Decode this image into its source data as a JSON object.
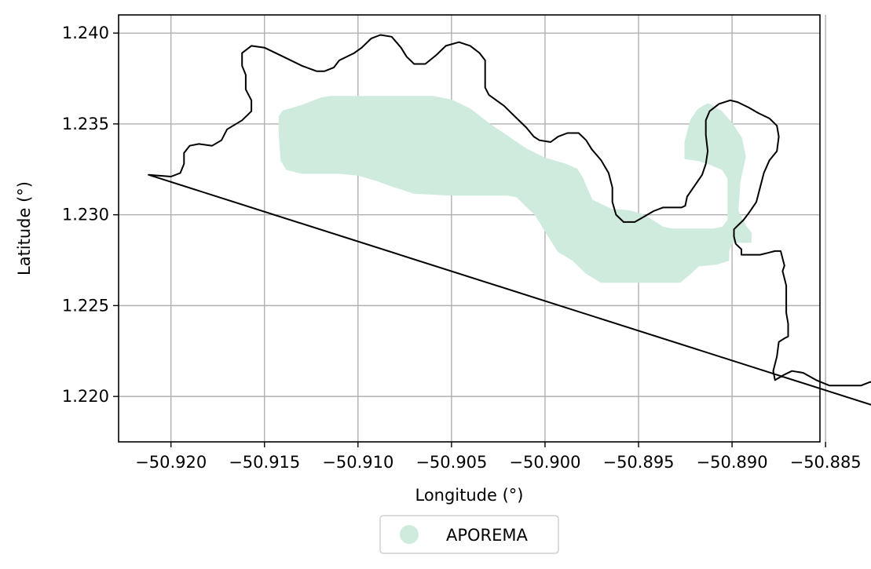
{
  "chart_data": {
    "type": "map",
    "xlabel": "Longitude (°)",
    "ylabel": "Latitude (°)",
    "xlim": [
      -50.9228,
      -50.8853
    ],
    "ylim": [
      1.2175,
      1.241
    ],
    "grid": true,
    "x_ticks": [
      {
        "value": -50.92,
        "label": "−50.920"
      },
      {
        "value": -50.915,
        "label": "−50.915"
      },
      {
        "value": -50.91,
        "label": "−50.910"
      },
      {
        "value": -50.905,
        "label": "−50.905"
      },
      {
        "value": -50.9,
        "label": "−50.900"
      },
      {
        "value": -50.895,
        "label": "−50.895"
      },
      {
        "value": -50.89,
        "label": "−50.890"
      },
      {
        "value": -50.885,
        "label": "−50.885"
      }
    ],
    "y_ticks": [
      {
        "value": 1.22,
        "label": "1.220"
      },
      {
        "value": 1.225,
        "label": "1.225"
      },
      {
        "value": 1.23,
        "label": "1.230"
      },
      {
        "value": 1.235,
        "label": "1.235"
      },
      {
        "value": 1.24,
        "label": "1.240"
      }
    ],
    "legend": {
      "placement": "bottom-center",
      "entries": [
        {
          "label": "APOREMA",
          "color": "#cfebdd"
        }
      ]
    },
    "layers": [
      {
        "role": "fill",
        "color": "#cfebdd",
        "coordinates": [
          [
            -50.914,
            1.2357
          ],
          [
            -50.913,
            1.236
          ],
          [
            -50.912,
            1.2364
          ],
          [
            -50.9115,
            1.2365
          ],
          [
            -50.906,
            1.2365
          ],
          [
            -50.905,
            1.2363
          ],
          [
            -50.904,
            1.2358
          ],
          [
            -50.903,
            1.235
          ],
          [
            -50.902,
            1.2343
          ],
          [
            -50.901,
            1.2336
          ],
          [
            -50.9,
            1.2331
          ],
          [
            -50.899,
            1.2328
          ],
          [
            -50.8983,
            1.2325
          ],
          [
            -50.898,
            1.232
          ],
          [
            -50.8978,
            1.2315
          ],
          [
            -50.8975,
            1.2308
          ],
          [
            -50.8965,
            1.2303
          ],
          [
            -50.8955,
            1.2302
          ],
          [
            -50.8948,
            1.23
          ],
          [
            -50.8943,
            1.2297
          ],
          [
            -50.8937,
            1.2293
          ],
          [
            -50.8932,
            1.2292
          ],
          [
            -50.892,
            1.2292
          ],
          [
            -50.891,
            1.2292
          ],
          [
            -50.8905,
            1.2293
          ],
          [
            -50.8902,
            1.2297
          ],
          [
            -50.8902,
            1.2305
          ],
          [
            -50.8902,
            1.232
          ],
          [
            -50.8905,
            1.2325
          ],
          [
            -50.8912,
            1.2328
          ],
          [
            -50.8918,
            1.233
          ],
          [
            -50.8925,
            1.2331
          ],
          [
            -50.8925,
            1.234
          ],
          [
            -50.8922,
            1.2352
          ],
          [
            -50.8918,
            1.2358
          ],
          [
            -50.8913,
            1.2361
          ],
          [
            -50.8906,
            1.2357
          ],
          [
            -50.89,
            1.235
          ],
          [
            -50.8895,
            1.2342
          ],
          [
            -50.8893,
            1.2332
          ],
          [
            -50.8896,
            1.2318
          ],
          [
            -50.8897,
            1.2302
          ],
          [
            -50.8893,
            1.2294
          ],
          [
            -50.889,
            1.229
          ],
          [
            -50.889,
            1.2285
          ],
          [
            -50.89,
            1.2285
          ],
          [
            -50.8902,
            1.228
          ],
          [
            -50.8902,
            1.2275
          ],
          [
            -50.8908,
            1.2273
          ],
          [
            -50.8918,
            1.2272
          ],
          [
            -50.8922,
            1.2268
          ],
          [
            -50.8928,
            1.2263
          ],
          [
            -50.896,
            1.2263
          ],
          [
            -50.897,
            1.2263
          ],
          [
            -50.8978,
            1.2268
          ],
          [
            -50.8985,
            1.2275
          ],
          [
            -50.8993,
            1.228
          ],
          [
            -50.8999,
            1.229
          ],
          [
            -50.9005,
            1.23
          ],
          [
            -50.9015,
            1.231
          ],
          [
            -50.902,
            1.2311
          ],
          [
            -50.905,
            1.2311
          ],
          [
            -50.907,
            1.2312
          ],
          [
            -50.9082,
            1.2316
          ],
          [
            -50.909,
            1.2319
          ],
          [
            -50.91,
            1.2322
          ],
          [
            -50.911,
            1.2323
          ],
          [
            -50.9125,
            1.2323
          ],
          [
            -50.913,
            1.2323
          ],
          [
            -50.9138,
            1.2325
          ],
          [
            -50.9141,
            1.233
          ],
          [
            -50.9142,
            1.2345
          ],
          [
            -50.9142,
            1.2354
          ]
        ]
      },
      {
        "role": "outline",
        "color": "#000000",
        "coordinates": [
          [
            -50.9212,
            1.2322
          ],
          [
            -50.92,
            1.2321
          ],
          [
            -50.9195,
            1.2323
          ],
          [
            -50.9193,
            1.2328
          ],
          [
            -50.9193,
            1.2334
          ],
          [
            -50.919,
            1.2338
          ],
          [
            -50.9185,
            1.2339
          ],
          [
            -50.9178,
            1.2338
          ],
          [
            -50.9173,
            1.2341
          ],
          [
            -50.917,
            1.2347
          ],
          [
            -50.9162,
            1.2352
          ],
          [
            -50.9157,
            1.2357
          ],
          [
            -50.9157,
            1.2363
          ],
          [
            -50.916,
            1.2369
          ],
          [
            -50.916,
            1.2377
          ],
          [
            -50.9162,
            1.2382
          ],
          [
            -50.9162,
            1.2389
          ],
          [
            -50.9157,
            1.2393
          ],
          [
            -50.915,
            1.2392
          ],
          [
            -50.914,
            1.2387
          ],
          [
            -50.913,
            1.2382
          ],
          [
            -50.9122,
            1.2379
          ],
          [
            -50.9118,
            1.2379
          ],
          [
            -50.9113,
            1.2381
          ],
          [
            -50.911,
            1.2385
          ],
          [
            -50.9102,
            1.2389
          ],
          [
            -50.9098,
            1.2392
          ],
          [
            -50.9093,
            1.2397
          ],
          [
            -50.9088,
            1.2399
          ],
          [
            -50.9082,
            1.2398
          ],
          [
            -50.9077,
            1.2392
          ],
          [
            -50.9074,
            1.2387
          ],
          [
            -50.907,
            1.2383
          ],
          [
            -50.9064,
            1.2383
          ],
          [
            -50.9058,
            1.2388
          ],
          [
            -50.9053,
            1.2393
          ],
          [
            -50.9046,
            1.2395
          ],
          [
            -50.904,
            1.2393
          ],
          [
            -50.9035,
            1.2389
          ],
          [
            -50.9032,
            1.2385
          ],
          [
            -50.9032,
            1.2377
          ],
          [
            -50.9032,
            1.237
          ],
          [
            -50.903,
            1.2366
          ],
          [
            -50.9026,
            1.2363
          ],
          [
            -50.9022,
            1.236
          ],
          [
            -50.9016,
            1.2354
          ],
          [
            -50.901,
            1.2348
          ],
          [
            -50.9006,
            1.2343
          ],
          [
            -50.9003,
            1.2341
          ],
          [
            -50.8997,
            1.234
          ],
          [
            -50.8993,
            1.2343
          ],
          [
            -50.8988,
            1.2345
          ],
          [
            -50.8982,
            1.2345
          ],
          [
            -50.8978,
            1.2341
          ],
          [
            -50.8975,
            1.2336
          ],
          [
            -50.897,
            1.233
          ],
          [
            -50.8966,
            1.2323
          ],
          [
            -50.8964,
            1.2315
          ],
          [
            -50.8964,
            1.2307
          ],
          [
            -50.8962,
            1.23
          ],
          [
            -50.8958,
            1.2296
          ],
          [
            -50.8952,
            1.2296
          ],
          [
            -50.8947,
            1.2299
          ],
          [
            -50.8942,
            1.2302
          ],
          [
            -50.8937,
            1.2304
          ],
          [
            -50.8932,
            1.2304
          ],
          [
            -50.8927,
            1.2304
          ],
          [
            -50.8925,
            1.2305
          ],
          [
            -50.8924,
            1.231
          ],
          [
            -50.892,
            1.2316
          ],
          [
            -50.8916,
            1.2322
          ],
          [
            -50.8914,
            1.2328
          ],
          [
            -50.8913,
            1.2335
          ],
          [
            -50.8914,
            1.2344
          ],
          [
            -50.8914,
            1.2352
          ],
          [
            -50.8912,
            1.2357
          ],
          [
            -50.8907,
            1.2361
          ],
          [
            -50.8901,
            1.2363
          ],
          [
            -50.8897,
            1.2362
          ],
          [
            -50.8891,
            1.2359
          ],
          [
            -50.8886,
            1.2356
          ],
          [
            -50.888,
            1.2353
          ],
          [
            -50.8876,
            1.2349
          ],
          [
            -50.8875,
            1.2343
          ],
          [
            -50.8876,
            1.2335
          ],
          [
            -50.888,
            1.233
          ],
          [
            -50.8883,
            1.2323
          ],
          [
            -50.8885,
            1.2315
          ],
          [
            -50.8887,
            1.2307
          ],
          [
            -50.8891,
            1.2301
          ],
          [
            -50.8894,
            1.2297
          ],
          [
            -50.8897,
            1.2294
          ],
          [
            -50.8899,
            1.2292
          ],
          [
            -50.8899,
            1.2288
          ],
          [
            -50.8898,
            1.2284
          ],
          [
            -50.8895,
            1.2281
          ],
          [
            -50.8895,
            1.2278
          ],
          [
            -50.889,
            1.2278
          ],
          [
            -50.8885,
            1.2278
          ],
          [
            -50.8881,
            1.2279
          ],
          [
            -50.8877,
            1.228
          ],
          [
            -50.8874,
            1.228
          ],
          [
            -50.8873,
            1.2276
          ],
          [
            -50.8872,
            1.2272
          ],
          [
            -50.8873,
            1.2269
          ],
          [
            -50.8872,
            1.2265
          ],
          [
            -50.8871,
            1.2261
          ],
          [
            -50.8871,
            1.2253
          ],
          [
            -50.8871,
            1.2246
          ],
          [
            -50.887,
            1.224
          ],
          [
            -50.887,
            1.2233
          ],
          [
            -50.8872,
            1.2232
          ],
          [
            -50.8875,
            1.223
          ],
          [
            -50.8876,
            1.2222
          ],
          [
            -50.8878,
            1.2214
          ],
          [
            -50.8877,
            1.2209
          ],
          [
            -50.8872,
            1.2212
          ],
          [
            -50.8868,
            1.2214
          ],
          [
            -50.8862,
            1.2213
          ],
          [
            -50.8855,
            1.2209
          ],
          [
            -50.8848,
            1.2206
          ],
          [
            -50.8842,
            1.2206
          ],
          [
            -50.8836,
            1.2206
          ],
          [
            -50.8831,
            1.2206
          ],
          [
            -50.8826,
            1.2208
          ],
          [
            -50.8822,
            1.2206
          ],
          [
            -50.8819,
            1.2202
          ],
          [
            -50.8817,
            1.2196
          ],
          [
            -50.8815,
            1.219
          ],
          [
            -50.8812,
            1.2188
          ],
          [
            -50.8807,
            1.2188
          ],
          [
            -50.8802,
            1.2187
          ],
          [
            -50.8797,
            1.2186
          ],
          [
            -50.9212,
            1.2322
          ]
        ]
      }
    ]
  }
}
